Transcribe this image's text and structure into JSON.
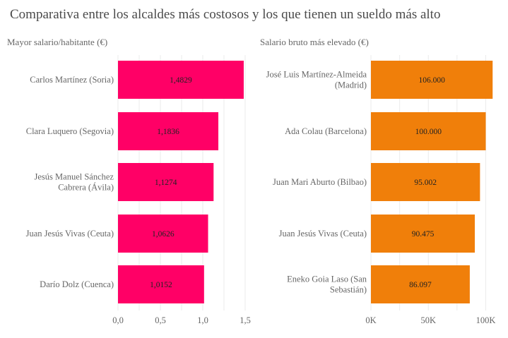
{
  "title": "Comparativa entre los alcaldes más costosos y los que tienen un sueldo más alto",
  "chart_data": [
    {
      "type": "bar",
      "orientation": "horizontal",
      "title": "Mayor salario/habitante (€)",
      "categories": [
        "Carlos Martínez (Soria)",
        "Clara Luquero (Segovia)",
        "Jesús Manuel Sánchez Cabrera (Ávila)",
        "Juan Jesús Vivas (Ceuta)",
        "Darío Dolz (Cuenca)"
      ],
      "category_lines": [
        [
          "Carlos Martínez (Soria)"
        ],
        [
          "Clara Luquero (Segovia)"
        ],
        [
          "Jesús Manuel Sánchez",
          "Cabrera (Ávila)"
        ],
        [
          "Juan Jesús Vivas (Ceuta)"
        ],
        [
          "Darío Dolz (Cuenca)"
        ]
      ],
      "values": [
        1.4829,
        1.1836,
        1.1274,
        1.0626,
        1.0152
      ],
      "value_labels": [
        "1,4829",
        "1,1836",
        "1,1274",
        "1,0626",
        "1,0152"
      ],
      "xlim": [
        0,
        1.6
      ],
      "ticks": [
        0,
        0.5,
        1,
        1.5
      ],
      "tick_labels": [
        "0,0",
        "0,5",
        "1,0",
        "1,5"
      ],
      "color": "#ff0066",
      "grid": true
    },
    {
      "type": "bar",
      "orientation": "horizontal",
      "title": "Salario bruto más elevado (€)",
      "categories": [
        "José Luis Martínez-Almeida (Madrid)",
        "Ada Colau (Barcelona)",
        "Juan Mari Aburto (Bilbao)",
        "Juan Jesús Vivas (Ceuta)",
        "Eneko Goia Laso (San Sebastián)"
      ],
      "category_lines": [
        [
          "José Luis Martínez-Almeida",
          "(Madrid)"
        ],
        [
          "Ada Colau (Barcelona)"
        ],
        [
          "Juan Mari Aburto (Bilbao)"
        ],
        [
          "Juan Jesús Vivas (Ceuta)"
        ],
        [
          "Eneko Goia Laso (San",
          "Sebastián)"
        ]
      ],
      "values": [
        106000,
        100000,
        95002,
        90475,
        86097
      ],
      "value_labels": [
        "106.000",
        "100.000",
        "95.002",
        "90.475",
        "86.097"
      ],
      "xlim": [
        0,
        112000
      ],
      "ticks": [
        0,
        50000,
        100000
      ],
      "tick_labels": [
        "0K",
        "50K",
        "100K"
      ],
      "color": "#f07f0a",
      "grid": true
    }
  ]
}
